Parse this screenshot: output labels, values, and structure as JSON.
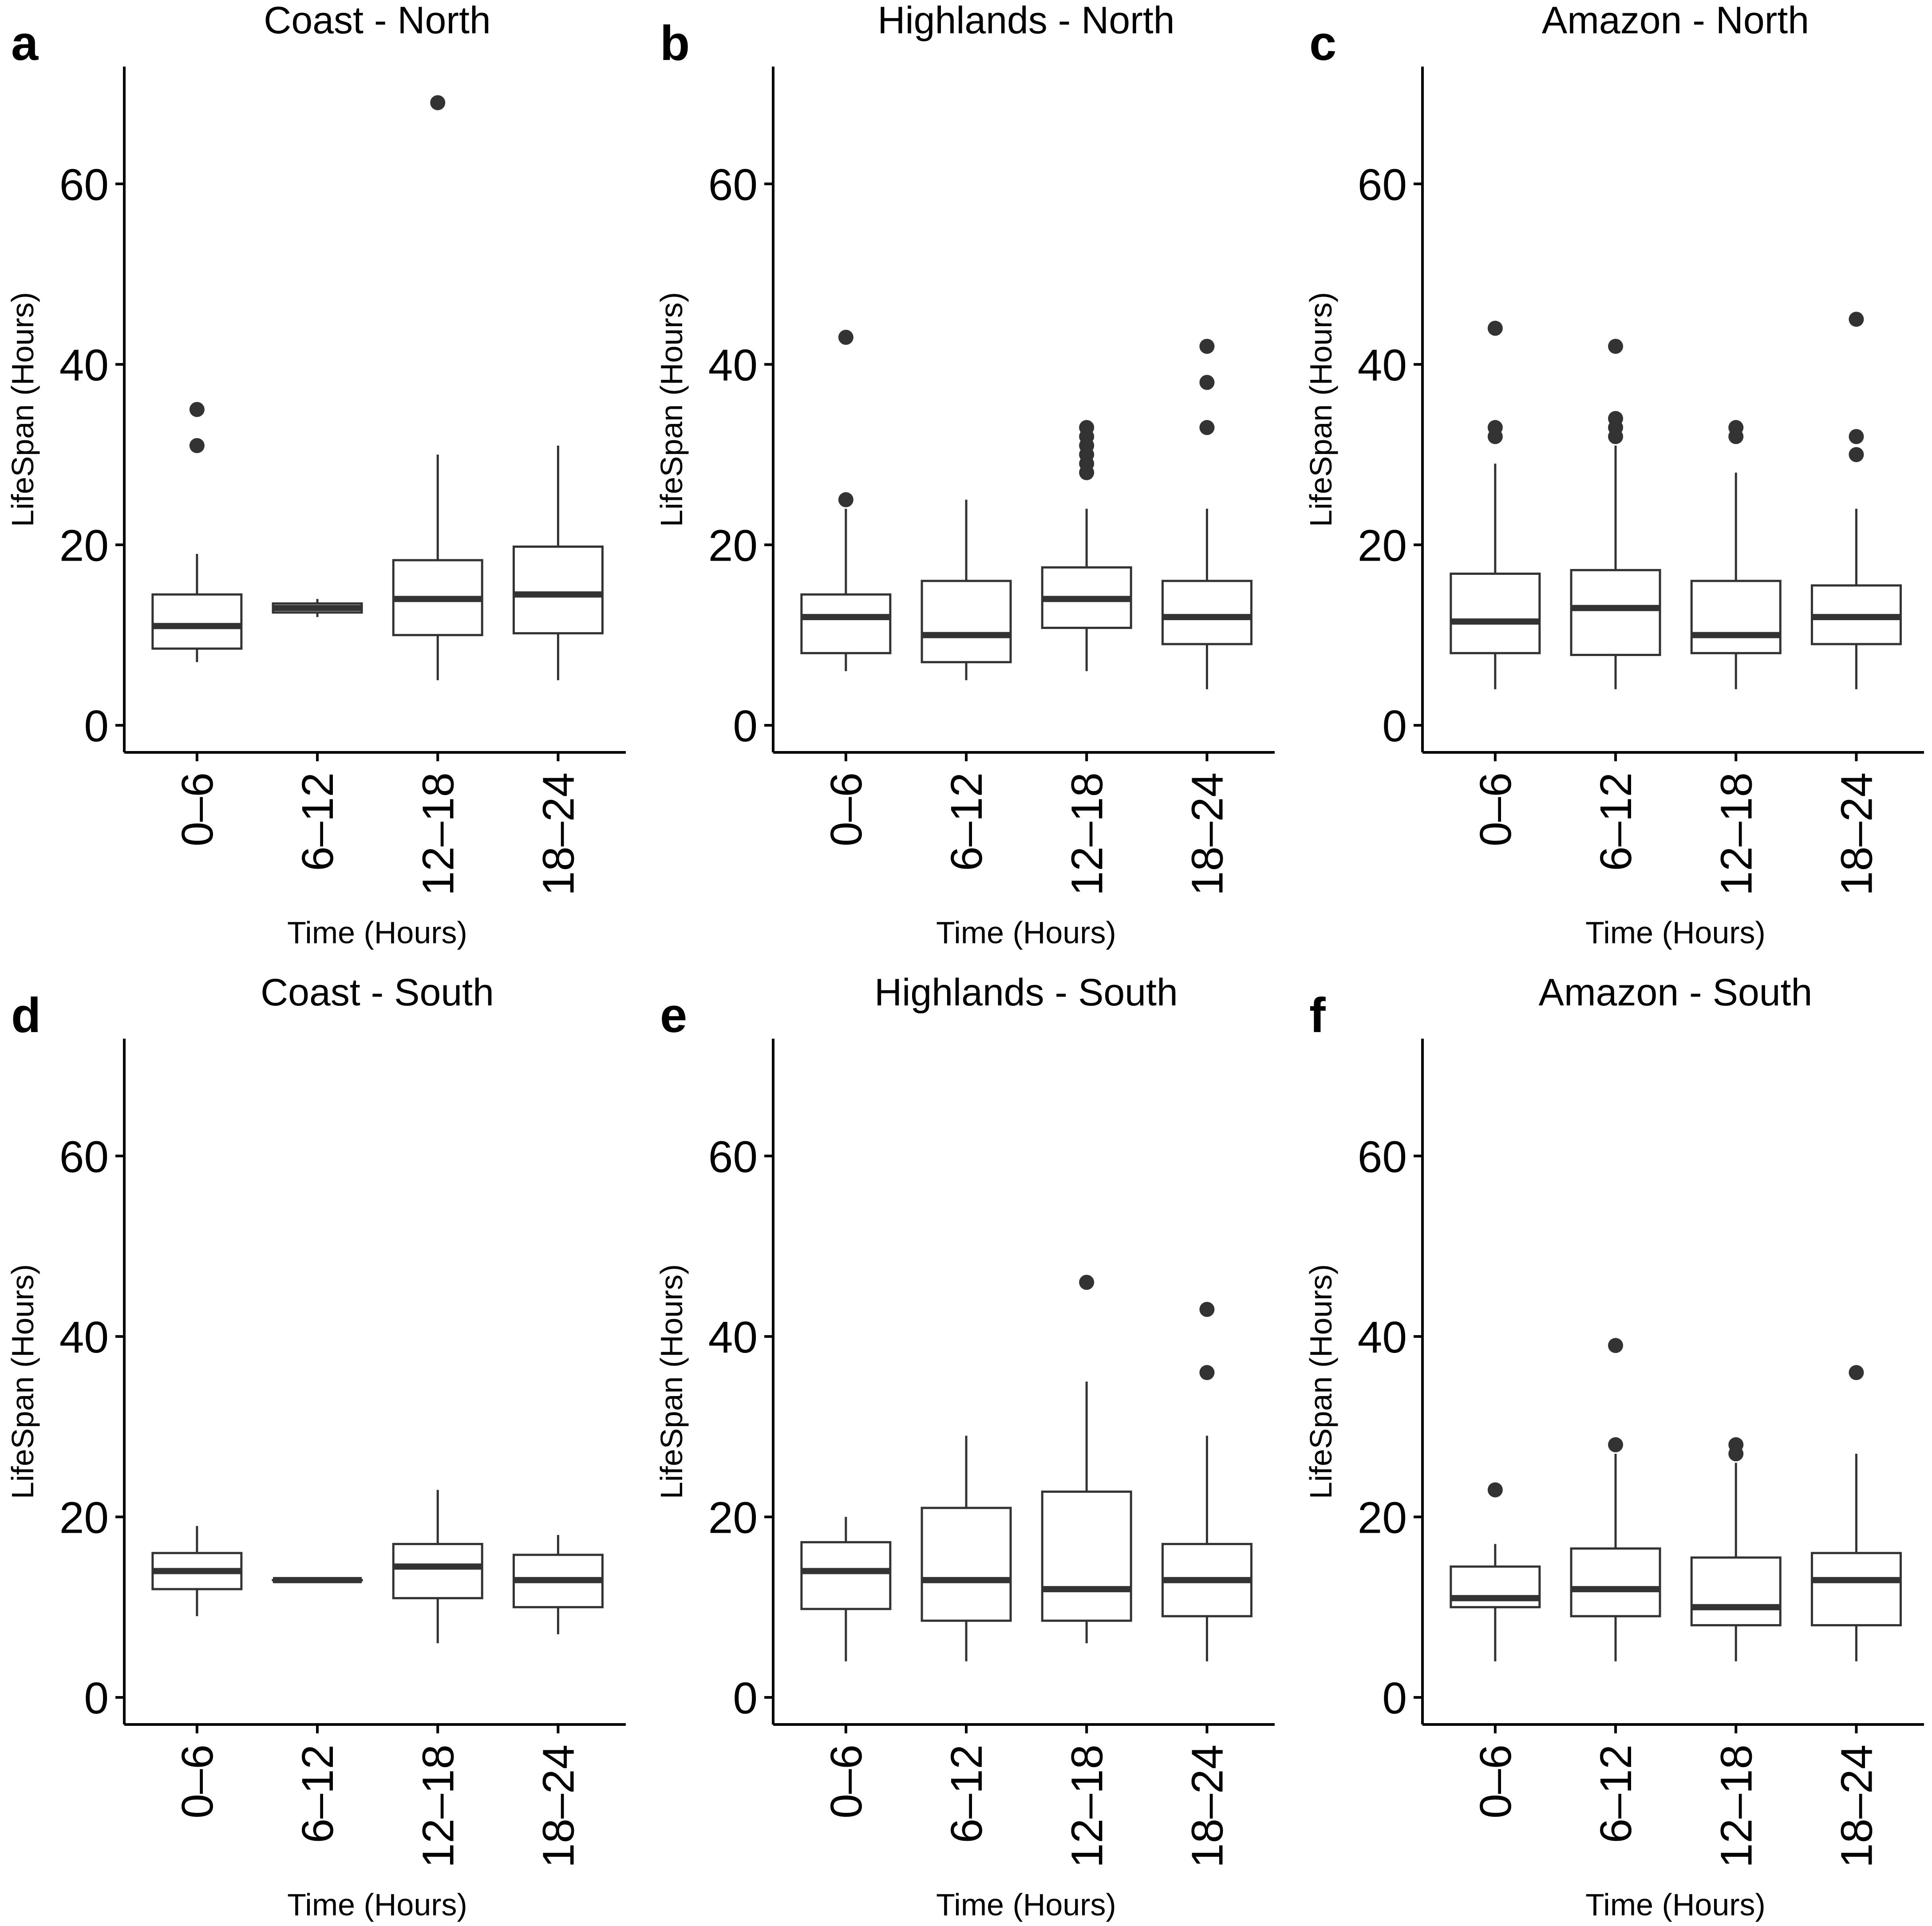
{
  "colors": {
    "background": "#ffffff",
    "box_stroke": "#333333",
    "box_fill": "#ffffff",
    "outlier": "#333333",
    "axis": "#000000"
  },
  "chart_data": [
    {
      "type": "boxplot",
      "panel": "a",
      "title": "Coast - North",
      "xlabel": "Time (Hours)",
      "ylabel": "LifeSpan (Hours)",
      "ylim": [
        -3,
        73
      ],
      "yticks": [
        "0",
        "20",
        "40",
        "60"
      ],
      "categories": [
        "0–6",
        "6–12",
        "12–18",
        "18–24"
      ],
      "boxes": [
        {
          "category": "0–6",
          "whisker_low": 7,
          "q1": 8.5,
          "median": 11,
          "q3": 14.5,
          "whisker_high": 19,
          "outliers": [
            31,
            35
          ]
        },
        {
          "category": "6–12",
          "whisker_low": 12,
          "q1": 12.5,
          "median": 13,
          "q3": 13.5,
          "whisker_high": 14,
          "outliers": []
        },
        {
          "category": "12–18",
          "whisker_low": 5,
          "q1": 10,
          "median": 14,
          "q3": 18.3,
          "whisker_high": 30,
          "outliers": [
            69
          ]
        },
        {
          "category": "18–24",
          "whisker_low": 5,
          "q1": 10.2,
          "median": 14.5,
          "q3": 19.8,
          "whisker_high": 31,
          "outliers": []
        }
      ]
    },
    {
      "type": "boxplot",
      "panel": "b",
      "title": "Highlands - North",
      "xlabel": "Time (Hours)",
      "ylabel": "LifeSpan (Hours)",
      "ylim": [
        -3,
        73
      ],
      "yticks": [
        "0",
        "20",
        "40",
        "60"
      ],
      "categories": [
        "0–6",
        "6–12",
        "12–18",
        "18–24"
      ],
      "boxes": [
        {
          "category": "0–6",
          "whisker_low": 6,
          "q1": 8,
          "median": 12,
          "q3": 14.5,
          "whisker_high": 24,
          "outliers": [
            25,
            43
          ]
        },
        {
          "category": "6–12",
          "whisker_low": 5,
          "q1": 7,
          "median": 10,
          "q3": 16,
          "whisker_high": 25,
          "outliers": []
        },
        {
          "category": "12–18",
          "whisker_low": 6,
          "q1": 10.8,
          "median": 14,
          "q3": 17.5,
          "whisker_high": 24,
          "outliers": [
            28,
            29,
            30,
            31,
            32,
            33
          ]
        },
        {
          "category": "18–24",
          "whisker_low": 4,
          "q1": 9,
          "median": 12,
          "q3": 16,
          "whisker_high": 24,
          "outliers": [
            33,
            38,
            42
          ]
        }
      ]
    },
    {
      "type": "boxplot",
      "panel": "c",
      "title": "Amazon - North",
      "xlabel": "Time (Hours)",
      "ylabel": "LifeSpan (Hours)",
      "ylim": [
        -3,
        73
      ],
      "yticks": [
        "0",
        "20",
        "40",
        "60"
      ],
      "categories": [
        "0–6",
        "6–12",
        "12–18",
        "18–24"
      ],
      "boxes": [
        {
          "category": "0–6",
          "whisker_low": 4,
          "q1": 8,
          "median": 11.5,
          "q3": 16.8,
          "whisker_high": 29,
          "outliers": [
            32,
            33,
            44
          ]
        },
        {
          "category": "6–12",
          "whisker_low": 4,
          "q1": 7.8,
          "median": 13,
          "q3": 17.2,
          "whisker_high": 31,
          "outliers": [
            32,
            33,
            34,
            42
          ]
        },
        {
          "category": "12–18",
          "whisker_low": 4,
          "q1": 8,
          "median": 10,
          "q3": 16,
          "whisker_high": 28,
          "outliers": [
            32,
            33
          ]
        },
        {
          "category": "18–24",
          "whisker_low": 4,
          "q1": 9,
          "median": 12,
          "q3": 15.5,
          "whisker_high": 24,
          "outliers": [
            30,
            32,
            45
          ]
        }
      ]
    },
    {
      "type": "boxplot",
      "panel": "d",
      "title": "Coast - South",
      "xlabel": "Time (Hours)",
      "ylabel": "LifeSpan (Hours)",
      "ylim": [
        -3,
        73
      ],
      "yticks": [
        "0",
        "20",
        "40",
        "60"
      ],
      "categories": [
        "0–6",
        "6–12",
        "12–18",
        "18–24"
      ],
      "boxes": [
        {
          "category": "0–6",
          "whisker_low": 9,
          "q1": 12,
          "median": 14,
          "q3": 16,
          "whisker_high": 19,
          "outliers": []
        },
        {
          "category": "6–12",
          "whisker_low": 13,
          "q1": 13,
          "median": 13,
          "q3": 13,
          "whisker_high": 13,
          "outliers": []
        },
        {
          "category": "12–18",
          "whisker_low": 6,
          "q1": 11,
          "median": 14.5,
          "q3": 17,
          "whisker_high": 23,
          "outliers": []
        },
        {
          "category": "18–24",
          "whisker_low": 7,
          "q1": 10,
          "median": 13,
          "q3": 15.8,
          "whisker_high": 18,
          "outliers": []
        }
      ]
    },
    {
      "type": "boxplot",
      "panel": "e",
      "title": "Highlands - South",
      "xlabel": "Time (Hours)",
      "ylabel": "LifeSpan (Hours)",
      "ylim": [
        -3,
        73
      ],
      "yticks": [
        "0",
        "20",
        "40",
        "60"
      ],
      "categories": [
        "0–6",
        "6–12",
        "12–18",
        "18–24"
      ],
      "boxes": [
        {
          "category": "0–6",
          "whisker_low": 4,
          "q1": 9.8,
          "median": 14,
          "q3": 17.2,
          "whisker_high": 20,
          "outliers": []
        },
        {
          "category": "6–12",
          "whisker_low": 4,
          "q1": 8.5,
          "median": 13,
          "q3": 21,
          "whisker_high": 29,
          "outliers": []
        },
        {
          "category": "12–18",
          "whisker_low": 6,
          "q1": 8.5,
          "median": 12,
          "q3": 22.8,
          "whisker_high": 35,
          "outliers": [
            46
          ]
        },
        {
          "category": "18–24",
          "whisker_low": 4,
          "q1": 9,
          "median": 13,
          "q3": 17,
          "whisker_high": 29,
          "outliers": [
            36,
            43
          ]
        }
      ]
    },
    {
      "type": "boxplot",
      "panel": "f",
      "title": "Amazon - South",
      "xlabel": "Time (Hours)",
      "ylabel": "LifeSpan (Hours)",
      "ylim": [
        -3,
        73
      ],
      "yticks": [
        "0",
        "20",
        "40",
        "60"
      ],
      "categories": [
        "0–6",
        "6–12",
        "12–18",
        "18–24"
      ],
      "boxes": [
        {
          "category": "0–6",
          "whisker_low": 4,
          "q1": 10,
          "median": 11,
          "q3": 14.5,
          "whisker_high": 17,
          "outliers": [
            23
          ]
        },
        {
          "category": "6–12",
          "whisker_low": 4,
          "q1": 9,
          "median": 12,
          "q3": 16.5,
          "whisker_high": 27,
          "outliers": [
            28,
            39
          ]
        },
        {
          "category": "12–18",
          "whisker_low": 4,
          "q1": 8,
          "median": 10,
          "q3": 15.5,
          "whisker_high": 26,
          "outliers": [
            27,
            28
          ]
        },
        {
          "category": "18–24",
          "whisker_low": 4,
          "q1": 8,
          "median": 13,
          "q3": 16,
          "whisker_high": 27,
          "outliers": [
            36
          ]
        }
      ]
    }
  ]
}
